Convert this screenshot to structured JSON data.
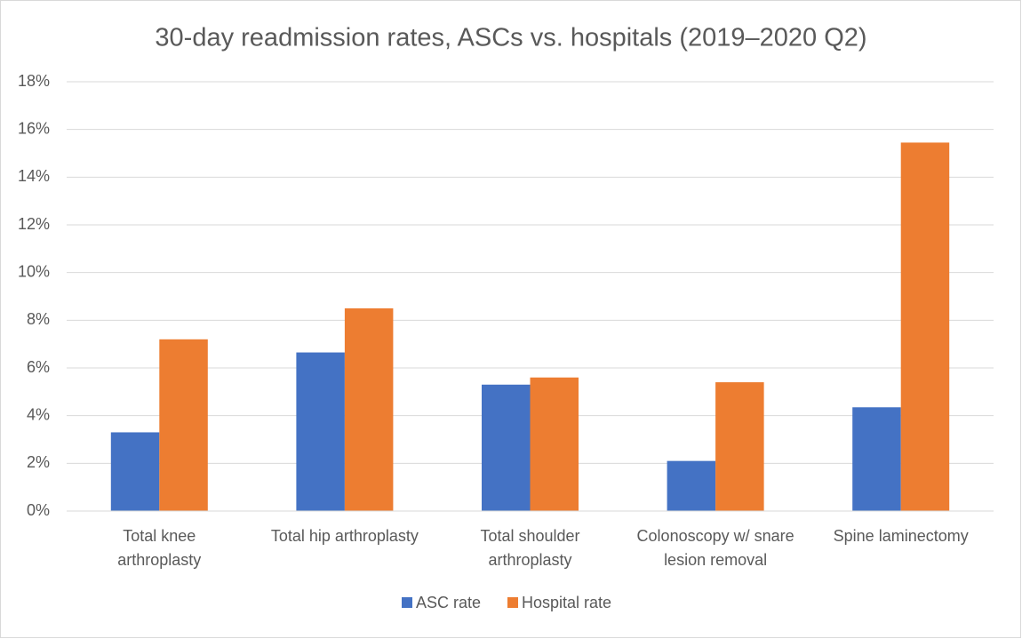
{
  "chart_data": {
    "type": "bar",
    "title": "30-day readmission rates, ASCs vs. hospitals (2019–2020 Q2)",
    "categories": [
      "Total knee\narthroplasty",
      "Total hip arthroplasty",
      "Total shoulder\narthroplasty",
      "Colonoscopy w/ snare\nlesion removal",
      "Spine laminectomy"
    ],
    "series": [
      {
        "name": "ASC rate",
        "color": "#4472c4",
        "values": [
          3.3,
          6.65,
          5.3,
          2.1,
          4.35
        ]
      },
      {
        "name": "Hospital rate",
        "color": "#ed7d31",
        "values": [
          7.2,
          8.5,
          5.6,
          5.4,
          15.45
        ]
      }
    ],
    "ylim": [
      0,
      18
    ],
    "yticks": [
      {
        "value": 0,
        "label": "0%"
      },
      {
        "value": 2,
        "label": "2%"
      },
      {
        "value": 4,
        "label": "4%"
      },
      {
        "value": 6,
        "label": "6%"
      },
      {
        "value": 8,
        "label": "8%"
      },
      {
        "value": 10,
        "label": "10%"
      },
      {
        "value": 12,
        "label": "12%"
      },
      {
        "value": 14,
        "label": "14%"
      },
      {
        "value": 16,
        "label": "16%"
      },
      {
        "value": 18,
        "label": "18%"
      }
    ],
    "grid": true,
    "legend": "bottom"
  }
}
